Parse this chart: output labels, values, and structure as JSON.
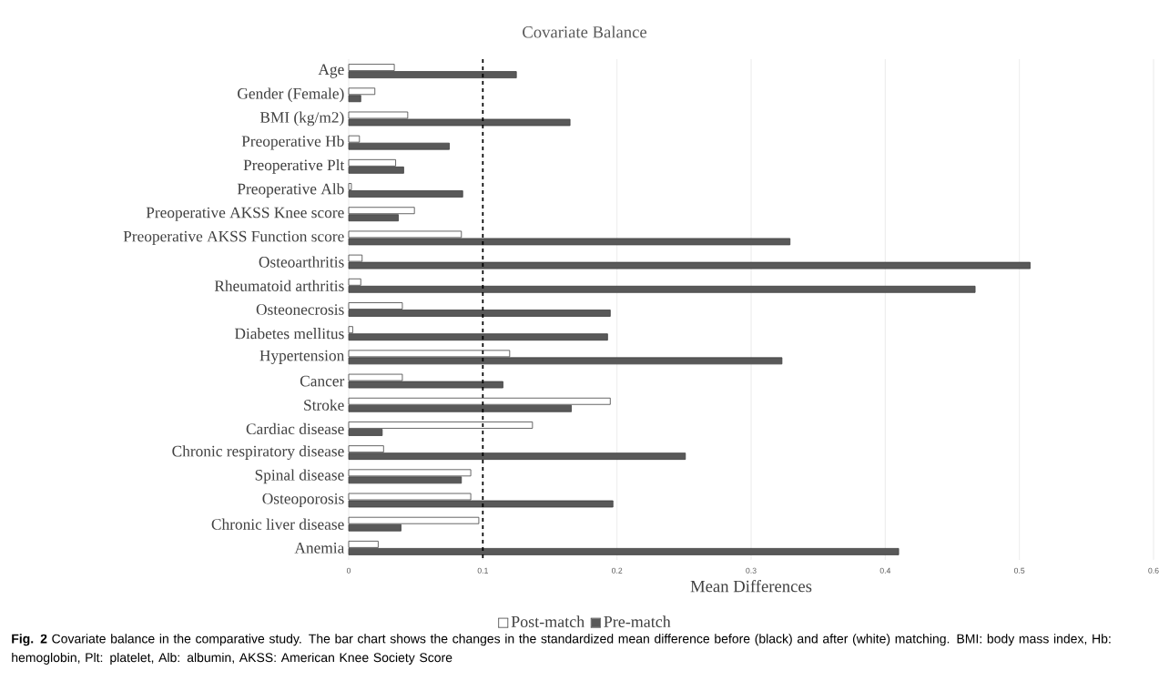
{
  "chart_data": {
    "type": "bar",
    "orientation": "horizontal",
    "title": "Covariate Balance",
    "xlabel": "Mean Differences",
    "categories": [
      "Age",
      "Gender (Female)",
      "BMI (kg/m2)",
      "Preoperative Hb",
      "Preoperative Plt",
      "Preoperative Alb",
      "Preoperative AKSS Knee score",
      "Preoperative AKSS  Function score",
      "Osteoarthritis",
      "Rheumatoid arthritis",
      "Osteonecrosis",
      "Diabetes mellitus",
      "Hypertension",
      "Cancer",
      "Stroke",
      "Cardiac disease",
      "Chronic respiratory disease",
      "Spinal disease",
      "Osteoporosis",
      "Chronic liver disease",
      "Anemia"
    ],
    "series": [
      {
        "name": "Post-match",
        "color": "#ffffff",
        "values": [
          0.034,
          0.0195,
          0.044,
          0.008,
          0.035,
          0.002,
          0.049,
          0.084,
          0.01,
          0.009,
          0.04,
          0.003,
          0.12,
          0.04,
          0.195,
          0.137,
          0.026,
          0.091,
          0.091,
          0.097,
          0.022
        ]
      },
      {
        "name": "Pre-match",
        "color": "#595959",
        "values": [
          0.125,
          0.009,
          0.165,
          0.075,
          0.041,
          0.085,
          0.037,
          0.329,
          0.508,
          0.467,
          0.195,
          0.193,
          0.323,
          0.115,
          0.166,
          0.025,
          0.251,
          0.084,
          0.197,
          0.039,
          0.41
        ]
      }
    ],
    "xlim": [
      0,
      0.6
    ],
    "xticks": [
      0,
      0.1,
      0.2,
      0.3,
      0.4,
      0.5,
      0.6
    ],
    "grid": "x",
    "legend": "bottom",
    "ref_lines": [
      {
        "axis": "x",
        "value": 0.1,
        "color": "#000000",
        "line_style": "dashed"
      }
    ],
    "annotations": [
      "**Fig. 2** Covariate balance in the comparative study. The bar chart shows the changes in the standardized mean difference before (black) and after (white) matching. BMI: body mass index, Hb: hemoglobin, Plt: platelet, Alb: albumin, AKSS: American Knee Society Score"
    ]
  }
}
